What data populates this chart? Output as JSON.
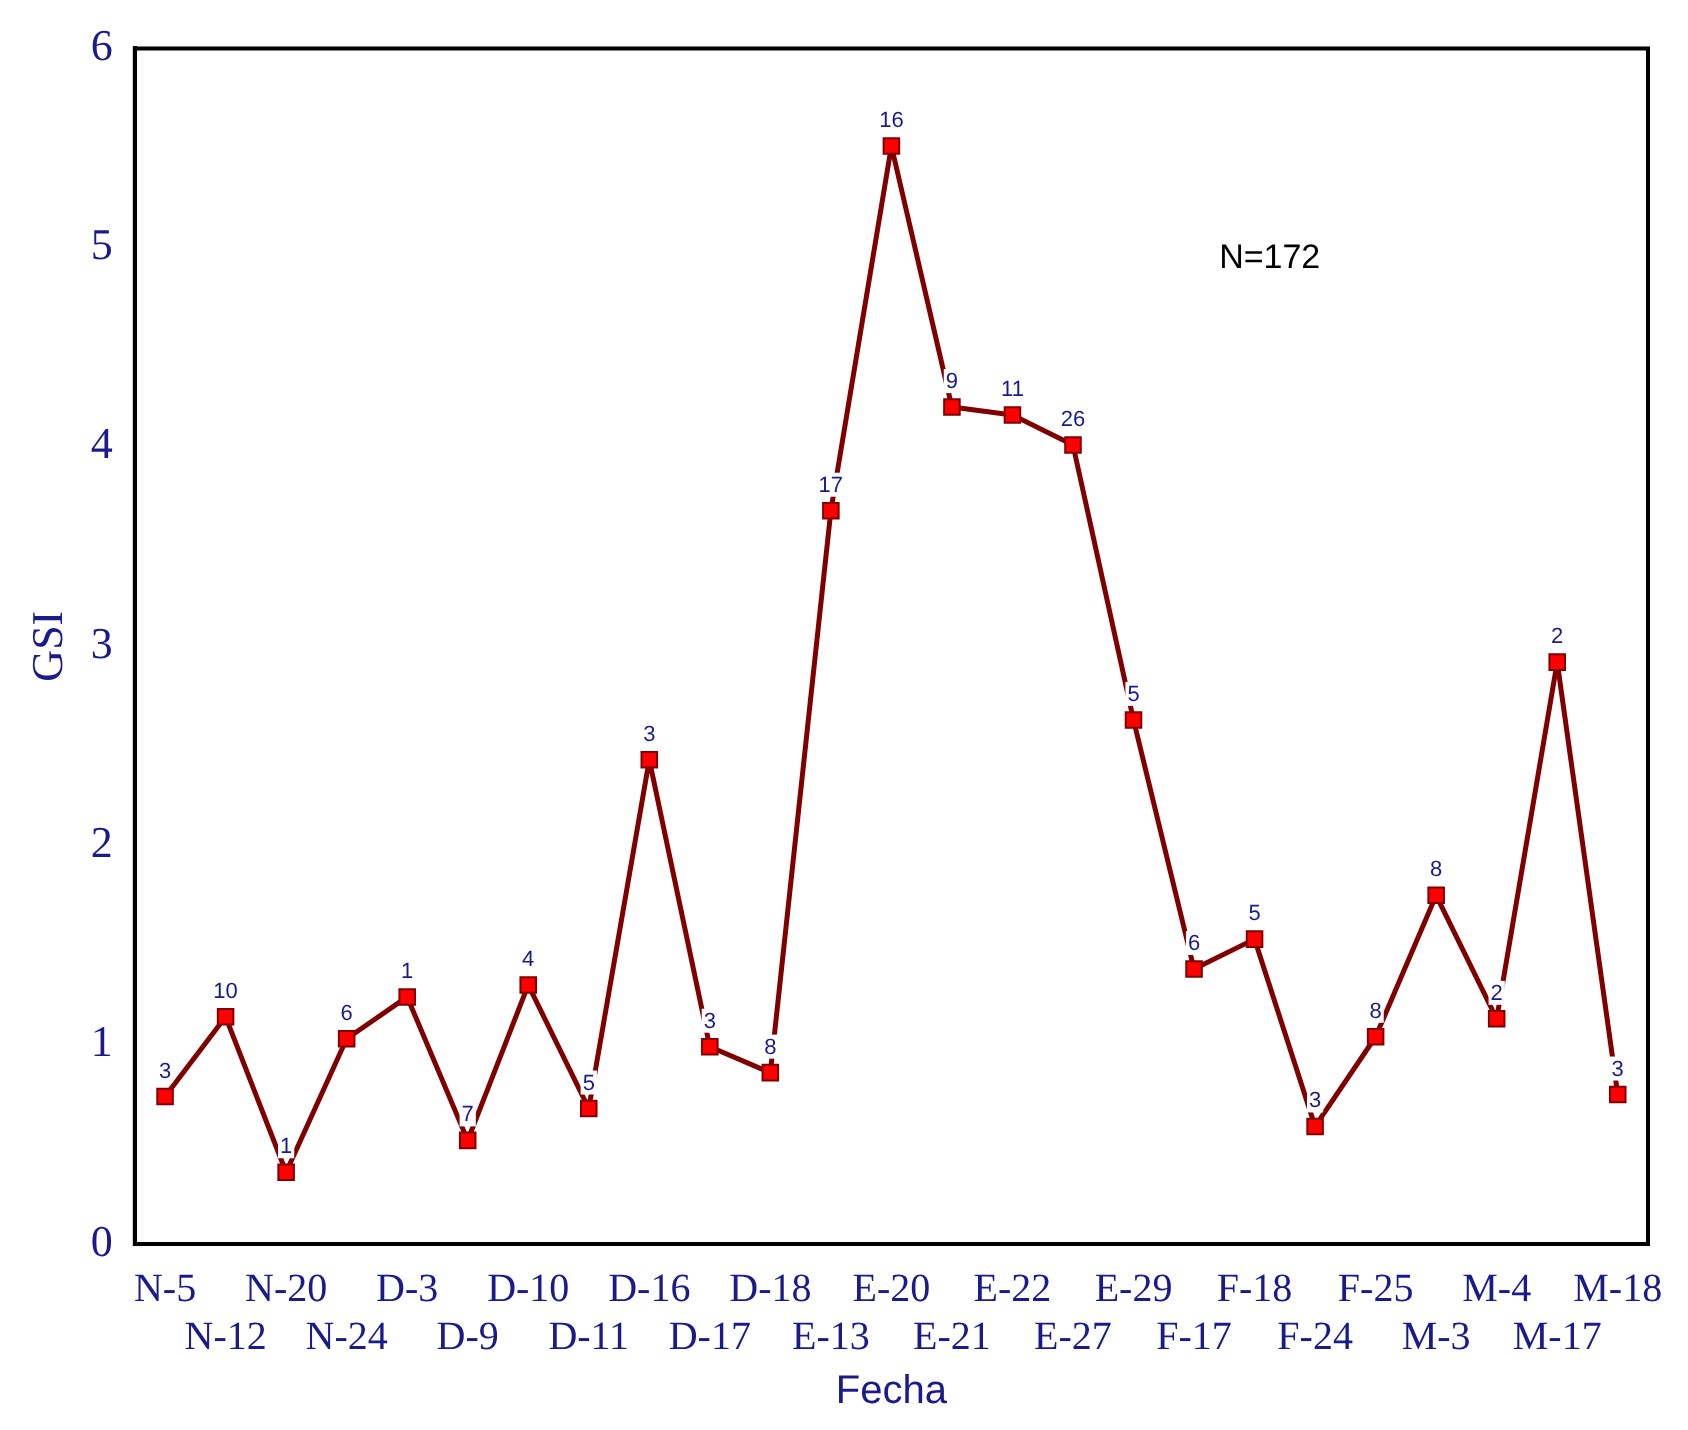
{
  "chart_data": {
    "type": "line",
    "xlabel": "Fecha",
    "ylabel": "GSI",
    "categories": [
      "N-5",
      "N-12",
      "N-20",
      "N-24",
      "D-3",
      "D-9",
      "D-10",
      "D-11",
      "D-16",
      "D-17",
      "D-18",
      "E-13",
      "E-20",
      "E-21",
      "E-22",
      "E-27",
      "E-29",
      "F-17",
      "F-18",
      "F-24",
      "F-25",
      "M-3",
      "M-4",
      "M-17",
      "M-18"
    ],
    "series": [
      {
        "color": "#800000",
        "values": [
          0.74,
          1.14,
          0.36,
          1.03,
          1.24,
          0.52,
          1.3,
          0.68,
          2.43,
          0.99,
          0.86,
          3.68,
          5.51,
          4.2,
          4.16,
          4.01,
          2.63,
          1.38,
          1.53,
          0.59,
          1.04,
          1.75,
          1.13,
          2.92,
          0.75
        ]
      }
    ],
    "ylim": [
      0,
      6
    ],
    "yticks": [
      0,
      1,
      2,
      3,
      4,
      5,
      6
    ],
    "grid": false,
    "legend": false,
    "marker": "square",
    "line_style": "solid",
    "annotations": [
      "N=172",
      {
        "text": "3",
        "x": "N-5",
        "y": 0.74
      },
      {
        "text": "10",
        "x": "N-12",
        "y": 1.14
      },
      {
        "text": "1",
        "x": "N-20",
        "y": 0.36
      },
      {
        "text": "6",
        "x": "N-24",
        "y": 1.03
      },
      {
        "text": "1",
        "x": "D-3",
        "y": 1.24
      },
      {
        "text": "7",
        "x": "D-9",
        "y": 0.52
      },
      {
        "text": "4",
        "x": "D-10",
        "y": 1.3
      },
      {
        "text": "5",
        "x": "D-11",
        "y": 0.68
      },
      {
        "text": "3",
        "x": "D-16",
        "y": 2.43
      },
      {
        "text": "3",
        "x": "D-17",
        "y": 0.99
      },
      {
        "text": "8",
        "x": "D-18",
        "y": 0.86
      },
      {
        "text": "17",
        "x": "E-13",
        "y": 3.68
      },
      {
        "text": "16",
        "x": "E-20",
        "y": 5.51
      },
      {
        "text": "9",
        "x": "E-21",
        "y": 4.2
      },
      {
        "text": "11",
        "x": "E-22",
        "y": 4.16
      },
      {
        "text": "26",
        "x": "E-27",
        "y": 4.01
      },
      {
        "text": "5",
        "x": "E-29",
        "y": 2.63
      },
      {
        "text": "6",
        "x": "F-17",
        "y": 1.38
      },
      {
        "text": "5",
        "x": "F-18",
        "y": 1.53
      },
      {
        "text": "3",
        "x": "F-24",
        "y": 0.59
      },
      {
        "text": "8",
        "x": "F-25",
        "y": 1.04
      },
      {
        "text": "8",
        "x": "M-3",
        "y": 1.75
      },
      {
        "text": "2",
        "x": "M-4",
        "y": 1.13
      },
      {
        "text": "2",
        "x": "M-17",
        "y": 2.92
      },
      {
        "text": "3",
        "x": "M-18",
        "y": 0.75
      }
    ]
  }
}
